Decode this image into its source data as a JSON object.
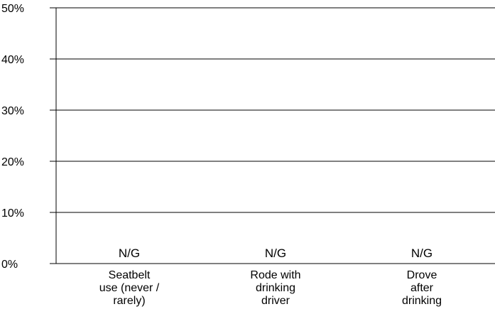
{
  "chart_data": {
    "type": "bar",
    "title": "",
    "xlabel": "",
    "ylabel": "",
    "ylim": [
      0,
      50
    ],
    "y_ticks": [
      "0%",
      "10%",
      "20%",
      "30%",
      "40%",
      "50%"
    ],
    "grid": true,
    "categories": [
      [
        "Seatbelt",
        "use (never /",
        "rarely)"
      ],
      [
        "Rode with",
        "drinking",
        "driver"
      ],
      [
        "Drove",
        "after",
        "drinking"
      ]
    ],
    "values": [
      null,
      null,
      null
    ],
    "data_labels": [
      "N/G",
      "N/G",
      "N/G"
    ],
    "colors": {
      "axis": "#000000",
      "grid": "#000000",
      "background": "#ffffff"
    }
  }
}
